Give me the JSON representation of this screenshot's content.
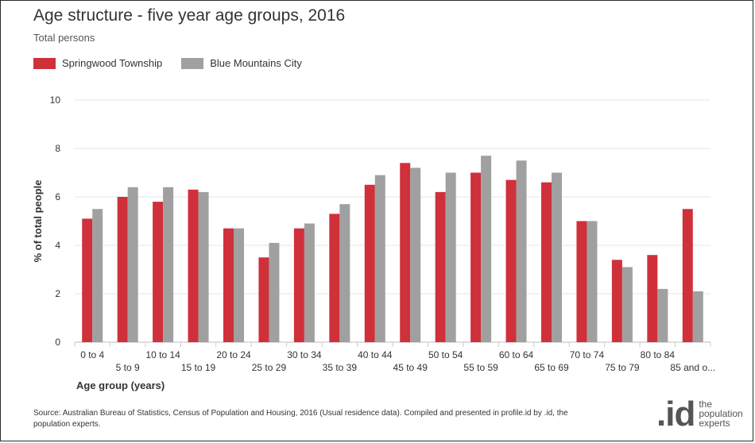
{
  "title": "Age structure - five year age groups, 2016",
  "subtitle": "Total persons",
  "legend": [
    {
      "label": "Springwood Township",
      "color": "#d0303a"
    },
    {
      "label": "Blue Mountains City",
      "color": "#a0a0a0"
    }
  ],
  "source": "Source: Australian Bureau of Statistics, Census of Population and Housing, 2016 (Usual residence data). Compiled and presented in profile.id by .id, the population experts.",
  "logo": {
    "mark": ".id",
    "text": "the population experts"
  },
  "chart_data": {
    "type": "bar",
    "ylabel": "% of total people",
    "xlabel": "Age group (years)",
    "ylim": [
      0,
      10
    ],
    "yticks": [
      0,
      2,
      4,
      6,
      8,
      10
    ],
    "grid": true,
    "legend_position": "top-left",
    "categories": [
      "0 to 4",
      "5 to 9",
      "10 to 14",
      "15 to 19",
      "20 to 24",
      "25 to 29",
      "30 to 34",
      "35 to 39",
      "40 to 44",
      "45 to 49",
      "50 to 54",
      "55 to 59",
      "60 to 64",
      "65 to 69",
      "70 to 74",
      "75 to 79",
      "80 to 84",
      "85 and o..."
    ],
    "series": [
      {
        "name": "Springwood Township",
        "color": "#d0303a",
        "values": [
          5.1,
          6.0,
          5.8,
          6.3,
          4.7,
          3.5,
          4.7,
          5.3,
          6.5,
          7.4,
          6.2,
          7.0,
          6.7,
          6.6,
          5.0,
          3.4,
          3.6,
          5.5
        ]
      },
      {
        "name": "Blue Mountains City",
        "color": "#a0a0a0",
        "values": [
          5.5,
          6.4,
          6.4,
          6.2,
          4.7,
          4.1,
          4.9,
          5.7,
          6.9,
          7.2,
          7.0,
          7.7,
          7.5,
          7.0,
          5.0,
          3.1,
          2.2,
          2.1
        ]
      }
    ]
  }
}
